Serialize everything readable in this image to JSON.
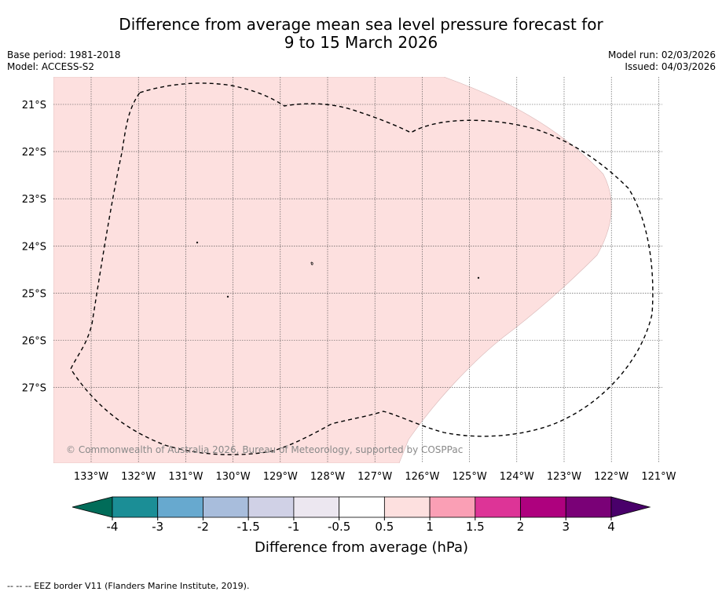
{
  "header": {
    "title_line1": "Difference from average mean sea level pressure forecast for",
    "title_line2": "9 to 15 March 2026",
    "base_period": "Base period: 1981-2018",
    "model": "Model: ACCESS-S2",
    "model_run": "Model run: 02/03/2026",
    "issued": "Issued: 04/03/2026"
  },
  "map": {
    "lon_labels": [
      "133°W",
      "132°W",
      "131°W",
      "130°W",
      "129°W",
      "128°W",
      "127°W",
      "126°W",
      "125°W",
      "124°W",
      "123°W",
      "122°W",
      "121°W"
    ],
    "lat_labels": [
      "21°S",
      "22°S",
      "23°S",
      "24°S",
      "25°S",
      "26°S",
      "27°S"
    ],
    "anomaly_fill_color": "#fde0df",
    "anomaly_category": "0.5 to 1 hPa",
    "copyright": "© Commonwealth of Australia 2026, Bureau of Meteorology, supported by COSPPac"
  },
  "colorbar": {
    "label": "Difference from average (hPa)",
    "ticks": [
      "-4",
      "-3",
      "-2",
      "-1.5",
      "-1",
      "-0.5",
      "0.5",
      "1",
      "1.5",
      "2",
      "3",
      "4"
    ],
    "colors": [
      "#1b8e96",
      "#67a9cf",
      "#a8bddc",
      "#d0d1e6",
      "#ece7f0",
      "#ffffff",
      "#fde0df",
      "#fa9fb5",
      "#dd3497",
      "#ae017e",
      "#7a0177"
    ],
    "under_color": "#016c59",
    "over_color": "#49006a"
  },
  "legend": {
    "eez_note": "--  --  -- EEZ border V11 (Flanders Marine Institute, 2019)."
  }
}
